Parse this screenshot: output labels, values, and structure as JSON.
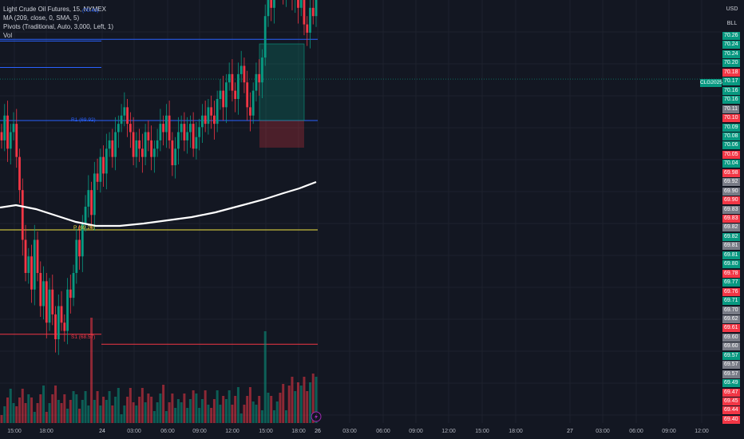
{
  "legend": {
    "title": "Light Crude Oil Futures, 15, NYMEX",
    "ma": "MA (209, close, 0, SMA, 5)",
    "pivots": "Pivots (Traditional, Auto, 3,000, Left, 1)",
    "vol": "Vol"
  },
  "axis_buttons": {
    "currency": "USD",
    "unit": "BLL"
  },
  "symbol_tag": "CLG2025",
  "pivot_labels": {
    "r1": "R1 (69.92)",
    "p": "P (69.26)",
    "s1": "S1 (68.57)",
    "r2_partial": "(70.41)"
  },
  "colors": {
    "up": "#089981",
    "down": "#f23645",
    "neutral": "#787b86",
    "background": "#131722",
    "ma": "#ffffff",
    "pivot_r": "#2962ff",
    "pivot_p": "#f0e442",
    "pivot_s": "#f23645"
  },
  "price_labels": [
    {
      "v": "70.26",
      "c": "up"
    },
    {
      "v": "70.24",
      "c": "up"
    },
    {
      "v": "70.24",
      "c": "up"
    },
    {
      "v": "70.20",
      "c": "up"
    },
    {
      "v": "70.18",
      "c": "down"
    },
    {
      "v": "70.17",
      "c": "up"
    },
    {
      "v": "70.16",
      "c": "up"
    },
    {
      "v": "70.16",
      "c": "up"
    },
    {
      "v": "70.11",
      "c": "neutral"
    },
    {
      "v": "70.10",
      "c": "down"
    },
    {
      "v": "70.09",
      "c": "up"
    },
    {
      "v": "70.08",
      "c": "up"
    },
    {
      "v": "70.06",
      "c": "up"
    },
    {
      "v": "70.05",
      "c": "down"
    },
    {
      "v": "70.04",
      "c": "up"
    },
    {
      "v": "69.98",
      "c": "down"
    },
    {
      "v": "69.92",
      "c": "neutral"
    },
    {
      "v": "69.90",
      "c": "neutral"
    },
    {
      "v": "69.90",
      "c": "down"
    },
    {
      "v": "69.83",
      "c": "neutral"
    },
    {
      "v": "69.83",
      "c": "down"
    },
    {
      "v": "69.82",
      "c": "neutral"
    },
    {
      "v": "69.82",
      "c": "up"
    },
    {
      "v": "69.81",
      "c": "neutral"
    },
    {
      "v": "69.81",
      "c": "up"
    },
    {
      "v": "69.80",
      "c": "up"
    },
    {
      "v": "69.78",
      "c": "down"
    },
    {
      "v": "69.77",
      "c": "up"
    },
    {
      "v": "69.76",
      "c": "down"
    },
    {
      "v": "69.71",
      "c": "up"
    },
    {
      "v": "69.70",
      "c": "neutral"
    },
    {
      "v": "69.62",
      "c": "neutral"
    },
    {
      "v": "69.61",
      "c": "down"
    },
    {
      "v": "69.60",
      "c": "neutral"
    },
    {
      "v": "69.60",
      "c": "neutral"
    },
    {
      "v": "69.57",
      "c": "up"
    },
    {
      "v": "69.57",
      "c": "neutral"
    },
    {
      "v": "69.57",
      "c": "neutral"
    },
    {
      "v": "69.49",
      "c": "up"
    },
    {
      "v": "69.47",
      "c": "down"
    },
    {
      "v": "69.45",
      "c": "down"
    },
    {
      "v": "69.44",
      "c": "down"
    },
    {
      "v": "69.40",
      "c": "down"
    }
  ],
  "chart_data": {
    "type": "candlestick",
    "title": "Light Crude Oil Futures, 15, NYMEX",
    "x_ticks": [
      "15:00",
      "18:00",
      "24",
      "03:00",
      "06:00",
      "09:00",
      "12:00",
      "15:00",
      "18:00",
      "26",
      "03:00",
      "06:00",
      "09:00",
      "12:00",
      "15:00",
      "18:00",
      "27",
      "03:00",
      "06:00",
      "09:00",
      "12:00"
    ],
    "pivots": {
      "R1": 69.92,
      "P": 69.26,
      "S1": 68.57,
      "R2": 70.41
    },
    "last_price": 70.17,
    "moving_average": {
      "label": "MA (209, close, 0, SMA, 5)"
    },
    "volume": {
      "label": "Vol"
    },
    "grid": true
  }
}
